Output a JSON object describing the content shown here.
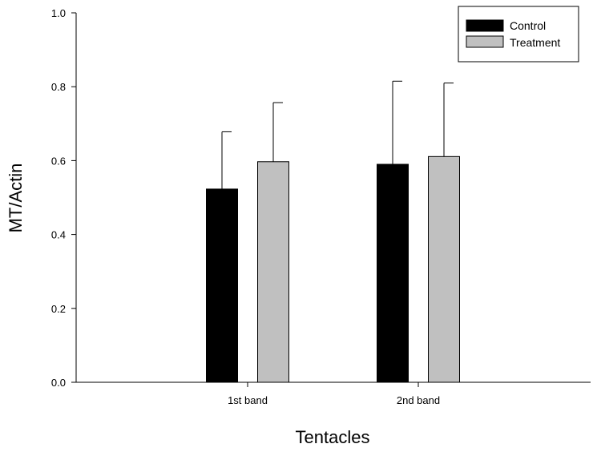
{
  "chart_data": {
    "type": "bar",
    "title": "",
    "xlabel": "Tentacles",
    "ylabel": "MT/Actin",
    "categories": [
      "1st band",
      "2nd band"
    ],
    "ylim": [
      0.0,
      1.0
    ],
    "yticks": [
      "0.0",
      "0.2",
      "0.4",
      "0.6",
      "0.8",
      "1.0"
    ],
    "grid": false,
    "legend_position": "top-right",
    "series": [
      {
        "name": "Control",
        "color": "#000000",
        "values": [
          0.523,
          0.59
        ],
        "errors": [
          0.155,
          0.225
        ]
      },
      {
        "name": "Treatment",
        "color": "#c0c0c0",
        "values": [
          0.597,
          0.611
        ],
        "errors": [
          0.16,
          0.199
        ]
      }
    ]
  }
}
